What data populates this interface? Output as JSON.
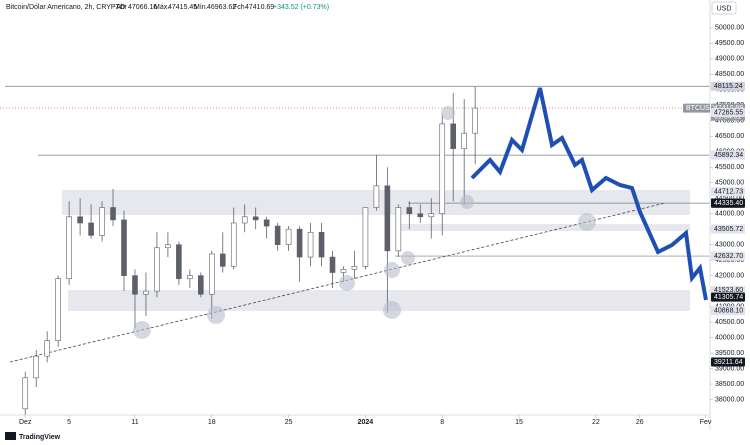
{
  "header": {
    "symbol": "Bitcoin/Dólar Americano, 2h, CRYPTO",
    "open_label": "Abr",
    "open": "47066.16",
    "high_label": "Máx.",
    "high": "47415.45",
    "low_label": "Mín.",
    "low": "46963.62",
    "close_label": "Fch",
    "close": "47410.69",
    "change": "+343.52 (+0.73%)"
  },
  "currency_button": "USD",
  "brand": "TradingView",
  "chart_data": {
    "type": "candlestick",
    "x": [
      0,
      1,
      2,
      3,
      4,
      5,
      6,
      7,
      8,
      9,
      10,
      11,
      12,
      13,
      14,
      15,
      16,
      17,
      18,
      19,
      20,
      21,
      22,
      23,
      24,
      25,
      26,
      27,
      28,
      29,
      30,
      31,
      32,
      33,
      34,
      35,
      36,
      37,
      38,
      39,
      40,
      41
    ],
    "open": [
      37700,
      38700,
      39400,
      39900,
      41900,
      43900,
      43700,
      43300,
      44200,
      43800,
      42000,
      41400,
      41500,
      42900,
      43000,
      41900,
      42000,
      41400,
      42700,
      42300,
      43700,
      43900,
      43800,
      43600,
      43000,
      43500,
      42600,
      43400,
      42600,
      42100,
      42200,
      42300,
      44200,
      44900,
      42800,
      44200,
      44000,
      43900,
      44000,
      46900,
      46100,
      46600
    ],
    "high": [
      38900,
      39600,
      40200,
      42000,
      44400,
      44500,
      44300,
      44400,
      44800,
      44100,
      42200,
      42100,
      43400,
      43400,
      43100,
      42200,
      42100,
      42800,
      43400,
      44200,
      44300,
      44200,
      43900,
      43700,
      43600,
      43600,
      43700,
      43700,
      42800,
      42300,
      42800,
      44200,
      45900,
      45500,
      44300,
      44400,
      44300,
      44500,
      47200,
      47900,
      47700,
      48100
    ],
    "low": [
      37500,
      38400,
      39200,
      39700,
      41700,
      43300,
      43200,
      43100,
      43600,
      41500,
      40300,
      40700,
      41300,
      42600,
      41700,
      41600,
      41300,
      40600,
      42100,
      42200,
      43400,
      43500,
      43200,
      42800,
      42800,
      41800,
      42300,
      42300,
      41600,
      41800,
      41900,
      42200,
      44100,
      40800,
      42600,
      43500,
      43700,
      43200,
      43300,
      44400,
      44300,
      45600
    ],
    "close": [
      38700,
      39400,
      39900,
      41900,
      43900,
      43700,
      43300,
      44200,
      43800,
      42000,
      41400,
      41500,
      42900,
      43000,
      41900,
      42000,
      41400,
      42700,
      42300,
      43700,
      43900,
      43800,
      43600,
      43000,
      43500,
      42600,
      43400,
      42600,
      42100,
      42200,
      42300,
      44200,
      44900,
      42800,
      44200,
      44000,
      43900,
      44000,
      46900,
      46100,
      46600,
      47410.69
    ],
    "up_color": "#ffffff",
    "down_color": "#5d606b",
    "wick_color": "#5d606b",
    "xlim": [
      -2.3,
      62.4
    ],
    "xticks": [
      {
        "value": 0,
        "label": "Dez"
      },
      {
        "value": 4,
        "label": "5"
      },
      {
        "value": 10,
        "label": "11"
      },
      {
        "value": 17,
        "label": "18"
      },
      {
        "value": 24,
        "label": "25"
      },
      {
        "value": 31,
        "label": "2024"
      },
      {
        "value": 38,
        "label": "8"
      },
      {
        "value": 45,
        "label": "15"
      },
      {
        "value": 52,
        "label": "22"
      },
      {
        "value": 56,
        "label": "26"
      },
      {
        "value": 62,
        "label": "Fev"
      }
    ],
    "ylim": [
      37500,
      50900
    ],
    "yticks": [
      {
        "value": 38000,
        "label": "38000.00"
      },
      {
        "value": 38500,
        "label": "38500.00"
      },
      {
        "value": 39000,
        "label": "39000.00"
      },
      {
        "value": 39500,
        "label": "39500.00"
      },
      {
        "value": 40000,
        "label": "40000.00"
      },
      {
        "value": 40500,
        "label": "40500.00"
      },
      {
        "value": 41000,
        "label": "41000.00"
      },
      {
        "value": 41500,
        "label": "41500.00"
      },
      {
        "value": 42000,
        "label": "42000.00"
      },
      {
        "value": 42500,
        "label": "42500.00"
      },
      {
        "value": 43000,
        "label": "43000.00"
      },
      {
        "value": 43500,
        "label": "43500.00"
      },
      {
        "value": 44000,
        "label": "44000.00"
      },
      {
        "value": 44500,
        "label": "44500.00"
      },
      {
        "value": 45000,
        "label": "45000.00"
      },
      {
        "value": 45500,
        "label": "45500.00"
      },
      {
        "value": 46000,
        "label": "46000.00"
      },
      {
        "value": 46500,
        "label": "46500.00"
      },
      {
        "value": 47000,
        "label": "47000.00"
      },
      {
        "value": 47500,
        "label": "47500.00"
      },
      {
        "value": 48000,
        "label": "48000.00"
      },
      {
        "value": 48500,
        "label": "48500.00"
      },
      {
        "value": 49000,
        "label": "49000.00"
      },
      {
        "value": 49500,
        "label": "49500.00"
      },
      {
        "value": 50000,
        "label": "50000.00"
      }
    ],
    "price_labels": [
      {
        "value": 48115.24,
        "label": "48115.24",
        "bg": "#d1d4dc",
        "fg": "#131722"
      },
      {
        "value": 47410.69,
        "label": "47410.69",
        "bg": "#9598a1",
        "fg": "#ffffff",
        "tag": "BTCUSD"
      },
      {
        "value": 47265.55,
        "label": "47265.55",
        "bg": "#e0e3eb",
        "fg": "#131722"
      },
      {
        "value": 45892.34,
        "label": "45892.34",
        "bg": "#e0e3eb",
        "fg": "#131722"
      },
      {
        "value": 44712.73,
        "label": "44712.73",
        "bg": "#e0e3eb",
        "fg": "#131722"
      },
      {
        "value": 44341.31,
        "label": "44341.31",
        "bg": "#131722",
        "fg": "#ffffff"
      },
      {
        "value": 44335.4,
        "label": "44335.40",
        "bg": "#131722",
        "fg": "#ffffff"
      },
      {
        "value": 43505.72,
        "label": "43505.72",
        "bg": "#e0e3eb",
        "fg": "#131722"
      },
      {
        "value": 42632.7,
        "label": "42632.70",
        "bg": "#e0e3eb",
        "fg": "#131722"
      },
      {
        "value": 41523.6,
        "label": "41523.60",
        "bg": "#e0e3eb",
        "fg": "#131722"
      },
      {
        "value": 41305.74,
        "label": "41305.74",
        "bg": "#131722",
        "fg": "#ffffff"
      },
      {
        "value": 40868.1,
        "label": "40868.10",
        "bg": "#e0e3eb",
        "fg": "#131722"
      },
      {
        "value": 39211.64,
        "label": "39211.64",
        "bg": "#131722",
        "fg": "#ffffff"
      }
    ],
    "countdown": "01:04:01"
  }
}
